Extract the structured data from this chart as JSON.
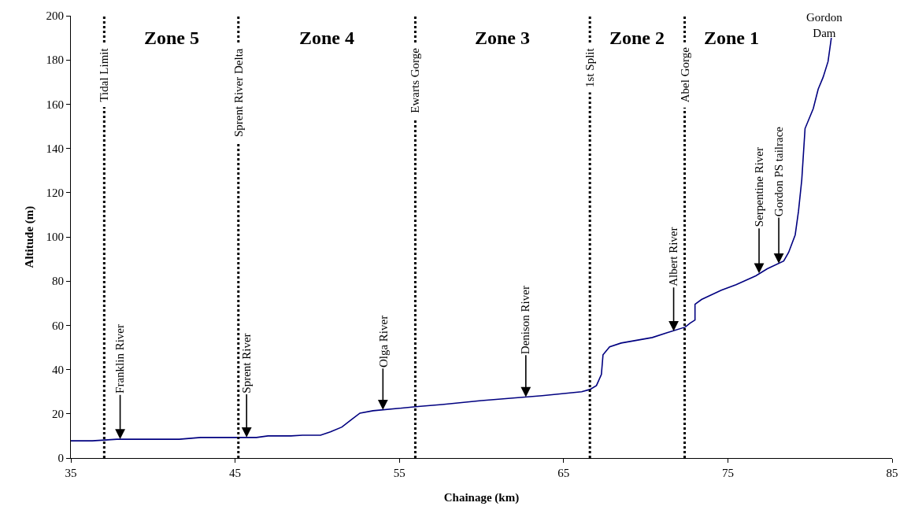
{
  "chart_data": {
    "type": "line",
    "xlabel": "Chainage (km)",
    "ylabel": "Altitude (m)",
    "x": [
      35,
      36.3,
      37.8,
      41.6,
      42.9,
      46.3,
      47,
      48.4,
      49.1,
      50.2,
      50.8,
      51.5,
      52.1,
      52.6,
      53.4,
      56,
      57.6,
      60,
      63.7,
      66.1,
      66.6,
      67,
      67.3,
      67.4,
      67.8,
      68.5,
      70.4,
      71.3,
      72.4,
      72.7,
      73,
      73,
      73.4,
      74.6,
      75.5,
      76.7,
      77.4,
      78.4,
      78.7,
      79.1,
      79.3,
      79.5,
      79.7,
      80.2,
      80.5,
      80.8,
      81.1,
      81.3
    ],
    "series": [
      {
        "color": "#000080",
        "values": [
          7.8,
          7.8,
          8.5,
          8.5,
          9.3,
          9.3,
          10,
          10,
          10.3,
          10.3,
          11.8,
          14,
          17.5,
          20.3,
          21.4,
          23.2,
          24.2,
          26,
          28.2,
          30,
          31,
          32.8,
          37.8,
          46.7,
          50.3,
          52,
          54.5,
          56.7,
          59.2,
          61,
          62.4,
          69.5,
          71.7,
          75.9,
          78.4,
          82.4,
          85.6,
          89.1,
          93,
          100.9,
          111.6,
          125.8,
          149,
          158,
          166.8,
          172.2,
          179.3,
          190
        ]
      }
    ],
    "xlim": [
      35,
      85
    ],
    "xticks": [
      35,
      45,
      55,
      65,
      75,
      85
    ],
    "ylim": [
      0,
      200
    ],
    "yticks": [
      0,
      20,
      40,
      60,
      80,
      100,
      120,
      140,
      160,
      180,
      200
    ],
    "grid": false,
    "marker": "none",
    "line_style": "solid",
    "ref_lines": [
      {
        "axis": "x",
        "value": 37.03,
        "label": "Tidal Limit",
        "line_style": "dotted",
        "color": "#000000"
      },
      {
        "axis": "x",
        "value": 45.2,
        "label": "Sprent River Delta",
        "line_style": "dotted",
        "color": "#000000"
      },
      {
        "axis": "x",
        "value": 55.97,
        "label": "Ewarts Gorge",
        "line_style": "dotted",
        "color": "#000000"
      },
      {
        "axis": "x",
        "value": 66.6,
        "label": "1st Split",
        "line_style": "dotted",
        "color": "#000000"
      },
      {
        "axis": "x",
        "value": 72.37,
        "label": "Abel Gorge",
        "line_style": "dotted",
        "color": "#000000"
      }
    ],
    "annotations": [
      "Zone 5",
      "Zone 4",
      "Zone 3",
      "Zone 2",
      "Zone 1",
      {
        "text": "Franklin River",
        "x": 38,
        "y": 8.5
      },
      {
        "text": "Sprent River",
        "x": 45.7,
        "y": 9.3
      },
      {
        "text": "Olga River",
        "x": 54,
        "y": 21.8
      },
      {
        "text": "Denison River",
        "x": 62.7,
        "y": 27.6
      },
      {
        "text": "Albert River",
        "x": 71.7,
        "y": 57.4
      },
      {
        "text": "Serpentine River",
        "x": 76.9,
        "y": 83.5
      },
      {
        "text": "Gordon PS tailrace",
        "x": 78.1,
        "y": 88
      },
      "Gordon Dam"
    ]
  }
}
